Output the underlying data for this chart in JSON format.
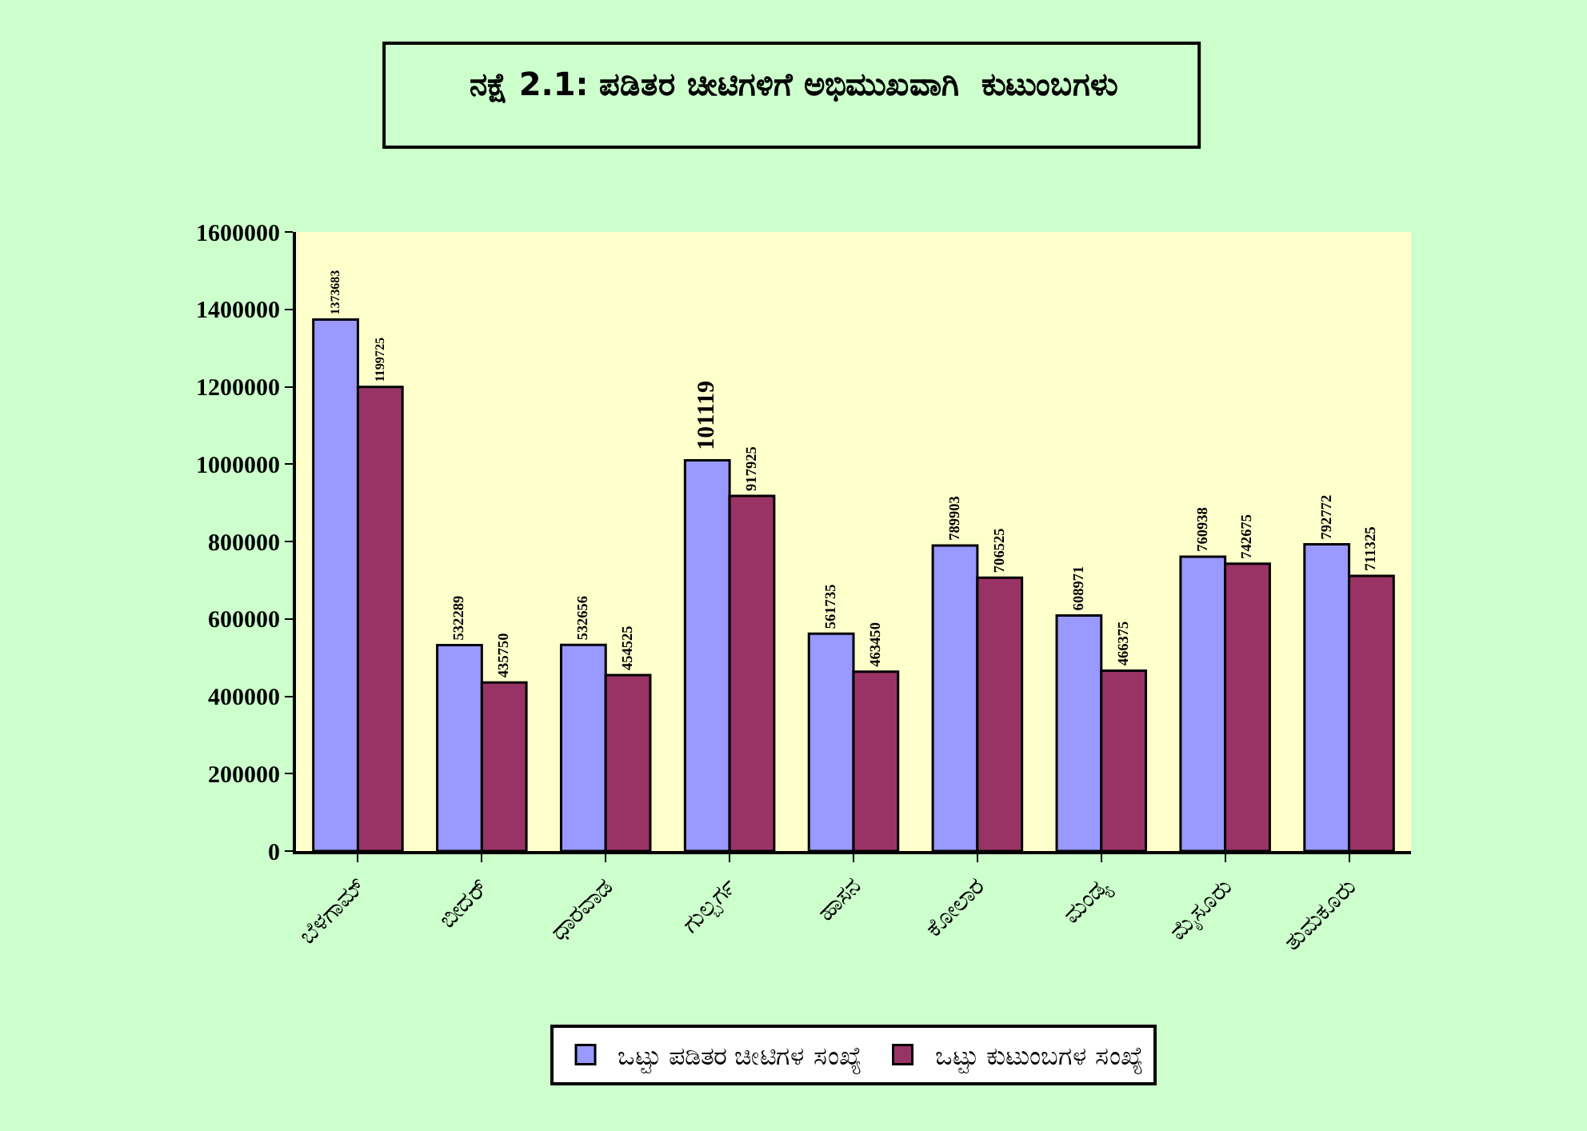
{
  "chart_data": {
    "type": "bar",
    "title": "ನಕ್ಷೆ 2.1: ಪಡಿತರ ಚೀಟಿಗಳಿಗೆ ಅಭಿಮುಖವಾಗಿ  ಕುಟುಂಬಗಳು",
    "categories": [
      "ಬೆಳಗಾಮ್",
      "ಬೀದರ್",
      "ಧಾರವಾಡ",
      "ಗುಲ್ಬರ್ಗ",
      "ಹಾಸನ",
      "ಕೋಲಾರ",
      "ಮಂಡ್ಯ",
      "ಮೈಸೂರು",
      "ತುಮಕೂರು"
    ],
    "series": [
      {
        "name": "ಒಟ್ಟು ಪಡಿತರ ಚೀಟಿಗಳ ಸಂಖ್ಯೆ",
        "color": "#9999ff",
        "values": [
          1373683,
          532289,
          532656,
          1010000,
          561735,
          789903,
          608971,
          760938,
          792772
        ],
        "value_labels": [
          "1373683",
          "532289",
          "532656",
          null,
          "561735",
          "789903",
          "608971",
          "760938",
          "792772"
        ]
      },
      {
        "name": "ಒಟ್ಟು ಕುಟುಂಬಗಳ ಸಂಖ್ಯೆ",
        "color": "#993366",
        "values": [
          1199725,
          435750,
          454525,
          917925,
          463450,
          706525,
          466375,
          742675,
          711325
        ],
        "value_labels": [
          "1199725",
          "435750",
          "454525",
          "917925",
          "463450",
          "706525",
          "466375",
          "742675",
          "711325"
        ]
      }
    ],
    "ylim": [
      0,
      1600000
    ],
    "yticks": [
      0,
      200000,
      400000,
      600000,
      800000,
      1000000,
      1200000,
      1400000,
      1600000
    ],
    "annotations": [
      {
        "text": "101119",
        "x": "ಗುಲ್ಬರ್ಗ",
        "y": 1010000
      }
    ],
    "grid": false,
    "legend": "bottom"
  }
}
